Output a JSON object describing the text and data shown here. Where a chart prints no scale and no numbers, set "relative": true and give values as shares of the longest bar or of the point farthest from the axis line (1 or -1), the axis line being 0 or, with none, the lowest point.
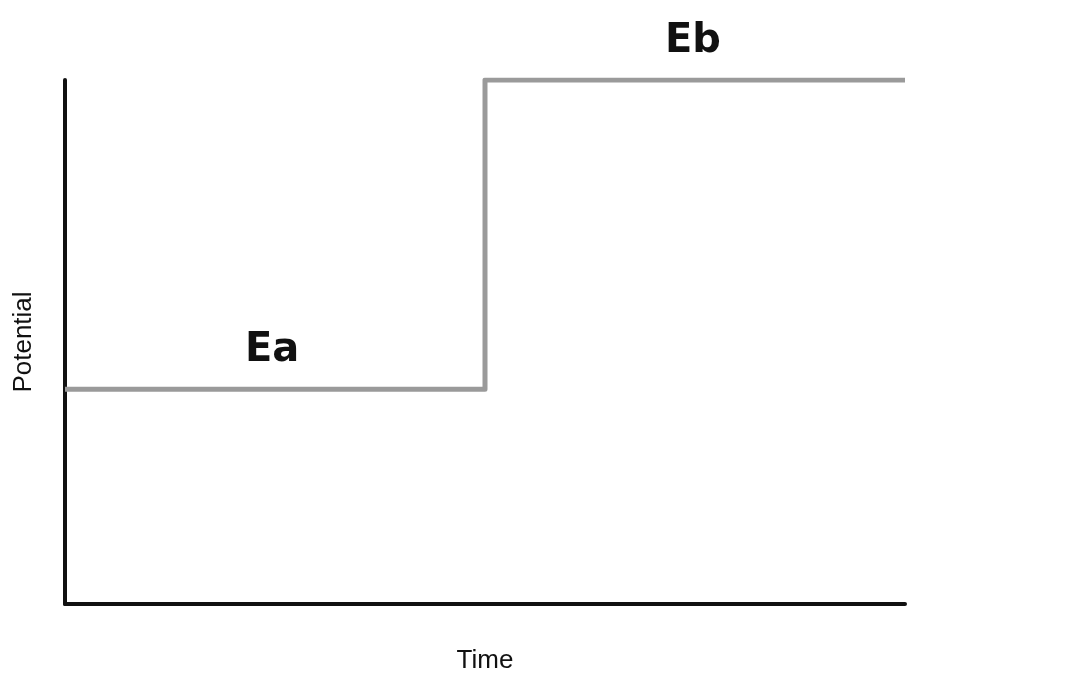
{
  "chart_data": {
    "type": "step",
    "relative": true,
    "xlabel": "Time",
    "ylabel": "Potential",
    "categories": [
      null,
      null,
      null
    ],
    "series": [
      {
        "color": "#9a9a9a",
        "values": [
          0.41,
          1,
          1
        ]
      }
    ],
    "annotations": [
      "Ea",
      "Eb"
    ],
    "grid": false,
    "marker": "none",
    "line_style": "solid"
  }
}
